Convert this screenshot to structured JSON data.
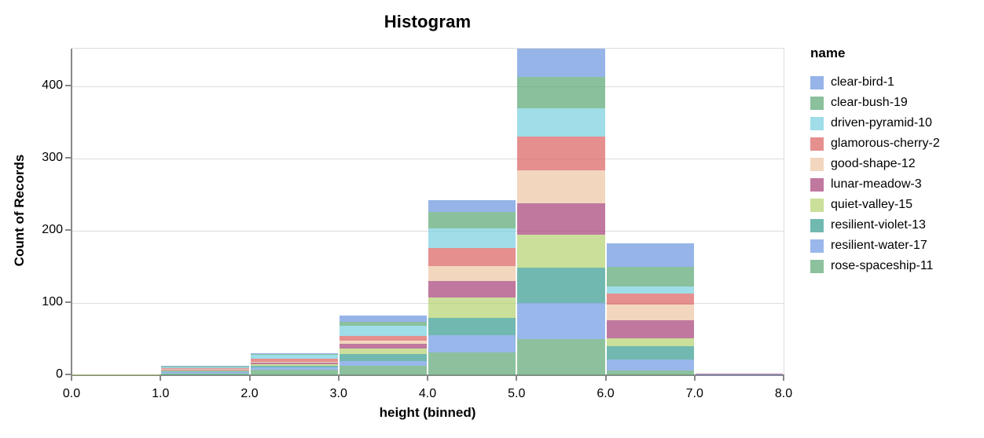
{
  "title": "Histogram",
  "colors": {
    "axis_domain": "#888888",
    "gridline": "#dddddd",
    "text": "#000000",
    "background": "#ffffff"
  },
  "chart_data": {
    "type": "bar",
    "stacked": true,
    "title": "Histogram",
    "xlabel": "height (binned)",
    "ylabel": "Count of Records",
    "legend_title": "name",
    "xlim": [
      0,
      8
    ],
    "ylim": [
      0,
      452
    ],
    "bin_width": 1,
    "x_tick_labels": [
      "0.0",
      "1.0",
      "2.0",
      "3.0",
      "4.0",
      "5.0",
      "6.0",
      "7.0",
      "8.0"
    ],
    "y_ticks": [
      0,
      100,
      200,
      300,
      400
    ],
    "grid": true,
    "legend_position": "right",
    "bar_opacity": 0.7,
    "bin_totals": [
      1,
      13,
      31,
      83,
      242,
      452,
      183,
      2
    ],
    "series": [
      {
        "name": "clear-bird-1",
        "color": "#6a94de",
        "values": [
          0,
          1,
          2,
          9,
          16,
          39,
          33,
          0
        ]
      },
      {
        "name": "clear-bush-19",
        "color": "#59a572",
        "values": [
          0,
          1,
          1,
          6,
          23,
          43,
          27,
          0
        ]
      },
      {
        "name": "driven-pyramid-10",
        "color": "#76cede",
        "values": [
          0,
          1,
          5,
          14,
          27,
          40,
          10,
          0
        ]
      },
      {
        "name": "glamorous-cherry-2",
        "color": "#da605f",
        "values": [
          0,
          1,
          4,
          6,
          25,
          46,
          15,
          0
        ]
      },
      {
        "name": "good-shape-12",
        "color": "#ecc4a3",
        "values": [
          0,
          1,
          2,
          5,
          21,
          46,
          22,
          0
        ]
      },
      {
        "name": "lunar-meadow-3",
        "color": "#a53e76",
        "values": [
          0,
          1,
          2,
          6,
          22,
          44,
          25,
          1
        ]
      },
      {
        "name": "quiet-valley-15",
        "color": "#b3d16e",
        "values": [
          1,
          1,
          2,
          8,
          29,
          45,
          11,
          0
        ]
      },
      {
        "name": "resilient-violet-13",
        "color": "#359b8f",
        "values": [
          0,
          2,
          2,
          9,
          24,
          49,
          18,
          0
        ]
      },
      {
        "name": "resilient-water-17",
        "color": "#6e98e1",
        "values": [
          0,
          2,
          3,
          7,
          24,
          50,
          16,
          1
        ]
      },
      {
        "name": "rose-spaceship-11",
        "color": "#5da674",
        "values": [
          0,
          2,
          8,
          13,
          31,
          50,
          6,
          0
        ]
      }
    ],
    "stack_order_bottom_to_top": [
      "rose-spaceship-11",
      "resilient-water-17",
      "resilient-violet-13",
      "quiet-valley-15",
      "lunar-meadow-3",
      "good-shape-12",
      "glamorous-cherry-2",
      "driven-pyramid-10",
      "clear-bush-19",
      "clear-bird-1"
    ]
  }
}
